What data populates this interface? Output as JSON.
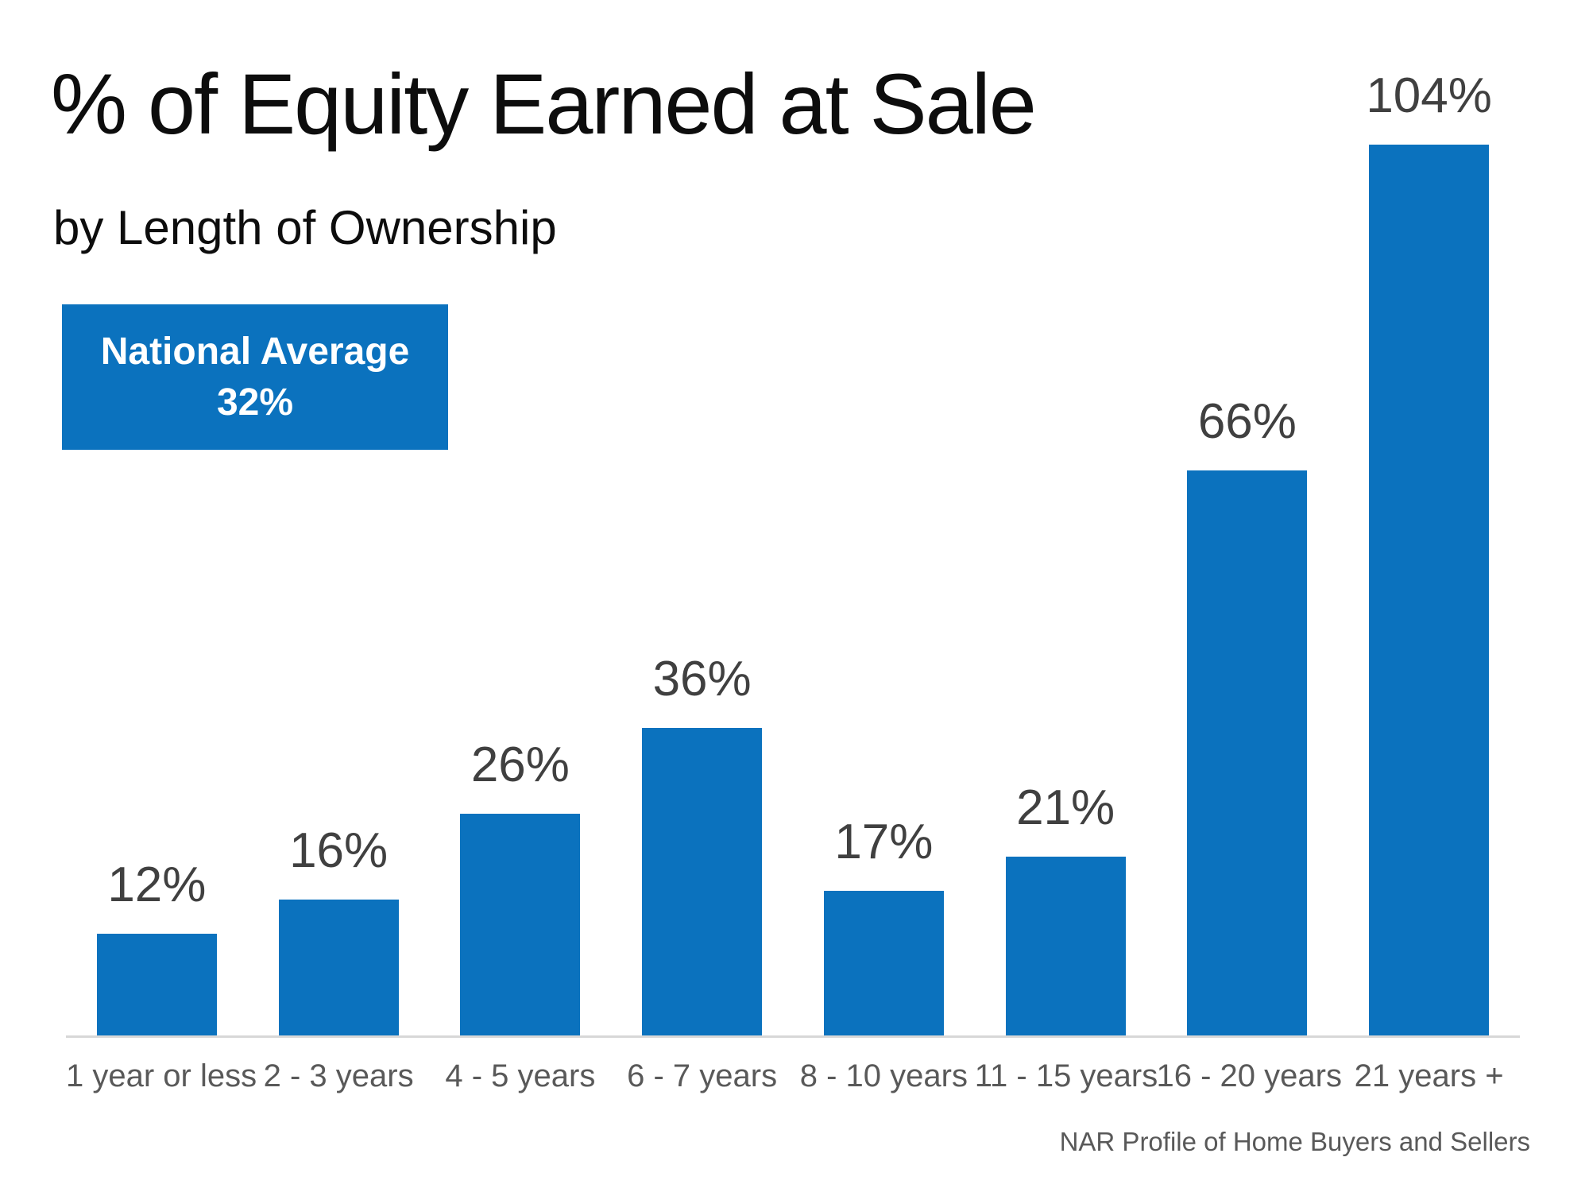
{
  "header": {
    "title": "% of Equity Earned at Sale",
    "subtitle": "by Length of Ownership"
  },
  "callout": {
    "line1": "National Average",
    "line2": "32%",
    "bg_color": "#0b72be",
    "text_color": "#ffffff"
  },
  "chart_data": {
    "type": "bar",
    "title": "% of Equity Earned at Sale",
    "subtitle": "by Length of Ownership",
    "categories": [
      "1 year or less",
      "2 - 3 years",
      "4 - 5 years",
      "6 - 7 years",
      "8 - 10 years",
      "11 - 15 years",
      "16 - 20 years",
      "21 years +"
    ],
    "values": [
      12,
      16,
      26,
      36,
      17,
      21,
      66,
      104
    ],
    "value_labels": [
      "12%",
      "16%",
      "26%",
      "36%",
      "17%",
      "21%",
      "66%",
      "104%"
    ],
    "national_average": 32,
    "xlabel": "",
    "ylabel": "",
    "ylim": [
      0,
      104
    ],
    "grid": false,
    "legend": false,
    "bar_color": "#0b72be",
    "value_label_color": "#404040",
    "axis_label_color": "#595959",
    "axis_line_color": "#d8d8d8"
  },
  "footer": {
    "source": "NAR Profile of Home Buyers and Sellers"
  }
}
